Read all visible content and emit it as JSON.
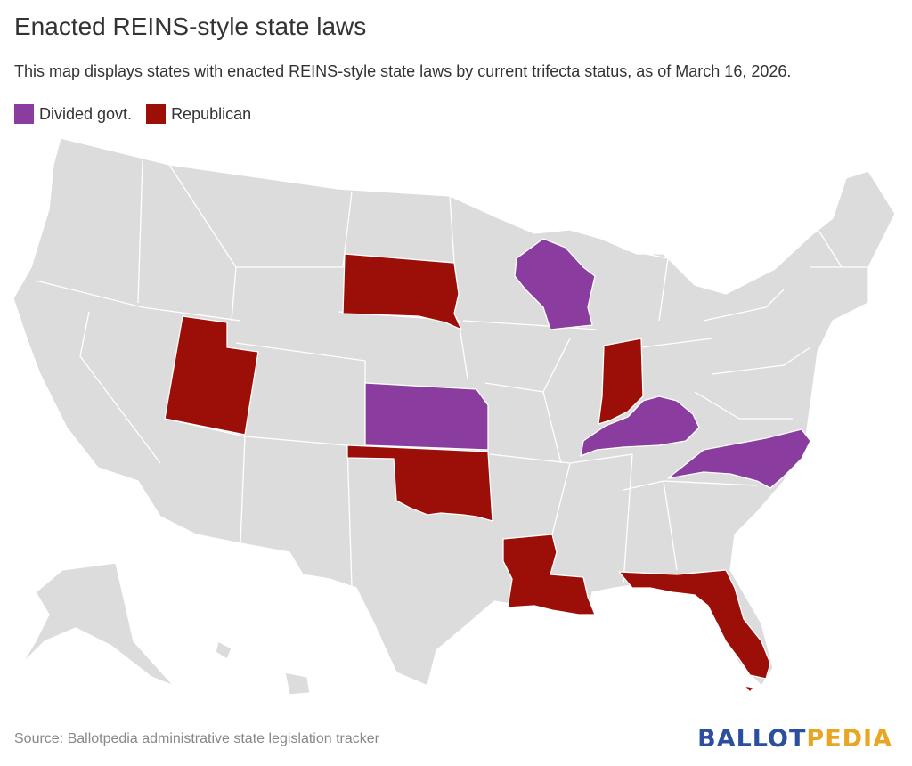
{
  "title": "Enacted REINS-style state laws",
  "subtitle": "This map displays states with enacted REINS-style state laws by current trifecta status, as of March 16, 2026.",
  "legend": {
    "items": [
      {
        "label": "Divided govt.",
        "color": "#8a3d9e"
      },
      {
        "label": "Republican",
        "color": "#9b0f08"
      }
    ]
  },
  "colors": {
    "base": "#dcdcdc",
    "divided": "#8a3d9e",
    "republican": "#9b0f08"
  },
  "highlighted_states": {
    "divided": [
      "Wisconsin",
      "Kansas",
      "Kentucky",
      "North Carolina"
    ],
    "republican": [
      "South Dakota",
      "Utah",
      "Oklahoma",
      "Indiana",
      "Louisiana",
      "Florida"
    ]
  },
  "footer": {
    "source": "Source: Ballotpedia administrative state legislation tracker",
    "logo_part1": "BALLOT",
    "logo_part2": "PEDIA"
  }
}
